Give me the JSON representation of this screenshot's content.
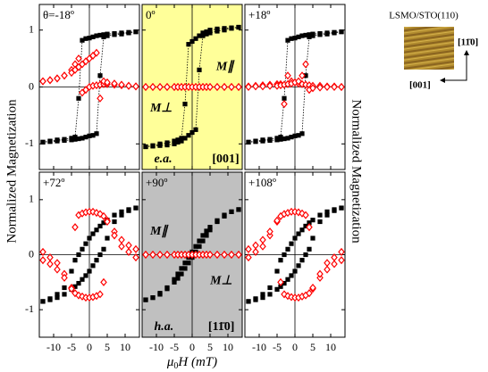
{
  "figure": {
    "ylabel": "Normalized Magnetization",
    "y2label": "Normalized Magnetization",
    "xlabel_symbol": "μ",
    "xlabel_sub": "0",
    "xlabel_rest": "H (mT)"
  },
  "inset": {
    "title": "LSMO/STO(110)",
    "axis_vertical": "[11̄0]",
    "axis_horizontal": "[001]"
  },
  "chart_data": [
    {
      "type": "scatter",
      "title": "θ=-18º",
      "background": "#ffffff",
      "zero_lines": true,
      "xlim": [
        -14,
        14
      ],
      "ylim": [
        -1.45,
        1.45
      ],
      "xticks": [
        -10,
        -5,
        0,
        5,
        10
      ],
      "yticks": [
        -1,
        0,
        1
      ],
      "x": [
        -13,
        -11,
        -9,
        -7,
        -5,
        -4,
        -3,
        -2,
        -1,
        0,
        1,
        2,
        3,
        4,
        5,
        7,
        9,
        11,
        13
      ],
      "series": [
        {
          "color": "#000000",
          "marker": "square",
          "line_style": "dotted",
          "values": [
            -0.97,
            -0.95,
            -0.93,
            -0.92,
            -0.9,
            -0.88,
            -0.2,
            0.82,
            0.85,
            0.86,
            0.88,
            0.9,
            0.91,
            0.92,
            0.93,
            0.94,
            0.95,
            0.96,
            0.97
          ]
        },
        {
          "color": "#000000",
          "marker": "square",
          "line_style": "dotted",
          "values": [
            -0.97,
            -0.96,
            -0.95,
            -0.94,
            -0.93,
            -0.92,
            -0.91,
            -0.9,
            -0.88,
            -0.86,
            -0.85,
            -0.82,
            0.2,
            0.88,
            0.9,
            0.92,
            0.93,
            0.95,
            0.97
          ]
        },
        {
          "color": "#ff0000",
          "marker": "open-diamond",
          "values": [
            0.1,
            0.12,
            0.15,
            0.2,
            0.3,
            0.4,
            0.5,
            -0.1,
            -0.05,
            0,
            0.02,
            0.03,
            0.04,
            0.05,
            0.05,
            0.04,
            0.03,
            0.02,
            0.01
          ]
        },
        {
          "color": "#ff0000",
          "marker": "open-diamond",
          "values": [
            0.1,
            0.12,
            0.15,
            0.2,
            0.25,
            0.3,
            0.35,
            0.4,
            0.45,
            0.5,
            0.55,
            0.6,
            -0.2,
            0.1,
            0.08,
            0.06,
            0.04,
            0.02,
            0.01
          ]
        }
      ]
    },
    {
      "type": "scatter",
      "title": "0º",
      "background": "#ffff99",
      "zero_lines": true,
      "xlim": [
        -14,
        14
      ],
      "ylim": [
        -1.45,
        1.45
      ],
      "xticks": [
        -10,
        -5,
        0,
        5,
        10
      ],
      "yticks": [
        -1,
        0,
        1
      ],
      "x": [
        -13,
        -11,
        -9,
        -7,
        -5,
        -4,
        -3,
        -2,
        -1,
        0,
        1,
        2,
        3,
        4,
        5,
        7,
        9,
        11,
        13
      ],
      "annotations": [
        {
          "text": "M∥",
          "color": "#000000"
        },
        {
          "text": "M⊥",
          "color": "#ff0000"
        },
        {
          "text": "e.a.",
          "color": "#000000"
        },
        {
          "text": "[001]",
          "color": "#000000"
        }
      ],
      "series": [
        {
          "color": "#000000",
          "marker": "square",
          "line_style": "dotted",
          "values": [
            -1.05,
            -1.03,
            -1.0,
            -0.98,
            -0.95,
            -0.93,
            -0.9,
            -0.3,
            0.75,
            0.8,
            0.85,
            0.9,
            0.95,
            0.97,
            1.0,
            1.02,
            1.03,
            1.04,
            1.05
          ]
        },
        {
          "color": "#000000",
          "marker": "square",
          "line_style": "dotted",
          "values": [
            -1.05,
            -1.04,
            -1.03,
            -1.02,
            -1.0,
            -0.97,
            -0.95,
            -0.9,
            -0.85,
            -0.8,
            -0.75,
            0.3,
            0.9,
            0.93,
            0.95,
            0.98,
            1.0,
            1.03,
            1.05
          ]
        },
        {
          "color": "#ff0000",
          "marker": "open-diamond",
          "values": [
            0,
            0,
            0,
            0,
            0,
            0,
            0,
            0,
            0,
            0,
            0,
            0,
            0,
            0,
            0,
            0,
            0,
            0,
            0
          ]
        },
        {
          "color": "#ff0000",
          "marker": "open-diamond",
          "values": [
            0,
            0,
            0,
            0,
            0,
            0,
            0,
            0,
            0,
            0,
            0,
            0,
            0,
            0,
            0,
            0,
            0,
            0,
            0
          ]
        }
      ]
    },
    {
      "type": "scatter",
      "title": "+18º",
      "background": "#ffffff",
      "zero_lines": true,
      "xlim": [
        -14,
        14
      ],
      "ylim": [
        -1.45,
        1.45
      ],
      "xticks": [
        -10,
        -5,
        0,
        5,
        10
      ],
      "yticks": [
        -1,
        0,
        1
      ],
      "x": [
        -13,
        -11,
        -9,
        -7,
        -5,
        -4,
        -3,
        -2,
        -1,
        0,
        1,
        2,
        3,
        4,
        5,
        7,
        9,
        11,
        13
      ],
      "series": [
        {
          "color": "#000000",
          "marker": "square",
          "line_style": "dotted",
          "values": [
            -0.97,
            -0.95,
            -0.93,
            -0.92,
            -0.9,
            -0.88,
            -0.2,
            0.82,
            0.85,
            0.86,
            0.88,
            0.9,
            0.91,
            0.92,
            0.93,
            0.94,
            0.95,
            0.96,
            0.97
          ]
        },
        {
          "color": "#000000",
          "marker": "square",
          "line_style": "dotted",
          "values": [
            -0.97,
            -0.96,
            -0.95,
            -0.94,
            -0.93,
            -0.92,
            -0.91,
            -0.9,
            -0.88,
            -0.86,
            -0.85,
            -0.82,
            0.2,
            0.88,
            0.9,
            0.92,
            0.93,
            0.95,
            0.97
          ]
        },
        {
          "color": "#ff0000",
          "marker": "open-diamond",
          "values": [
            0.01,
            0.02,
            0.03,
            0.04,
            0.05,
            0.05,
            -0.3,
            0.2,
            0.1,
            0.08,
            0.06,
            0.05,
            0.04,
            0.03,
            0.02,
            0.02,
            0.01,
            0.01,
            0
          ]
        },
        {
          "color": "#ff0000",
          "marker": "open-diamond",
          "values": [
            0,
            0.01,
            0.01,
            0.02,
            0.02,
            0.03,
            0.04,
            0.05,
            0.06,
            0.08,
            0.1,
            0.2,
            0.4,
            -0.05,
            -0.02,
            -0.01,
            0,
            0,
            0
          ]
        }
      ]
    },
    {
      "type": "scatter",
      "title": "+72º",
      "background": "#ffffff",
      "zero_lines": true,
      "xlim": [
        -14,
        14
      ],
      "ylim": [
        -1.5,
        1.5
      ],
      "xticks": [
        -10,
        -5,
        0,
        5,
        10
      ],
      "yticks": [
        -1,
        0,
        1
      ],
      "x": [
        -13,
        -11,
        -9,
        -7,
        -5,
        -4,
        -3,
        -2,
        -1,
        0,
        1,
        2,
        3,
        4,
        5,
        7,
        9,
        11,
        13
      ],
      "series": [
        {
          "color": "#000000",
          "marker": "square",
          "values": [
            -0.85,
            -0.8,
            -0.72,
            -0.6,
            -0.3,
            -0.1,
            0,
            0.1,
            0.2,
            0.3,
            0.38,
            0.45,
            0.52,
            0.58,
            0.63,
            0.72,
            0.78,
            0.82,
            0.85
          ]
        },
        {
          "color": "#000000",
          "marker": "square",
          "values": [
            -0.85,
            -0.82,
            -0.78,
            -0.72,
            -0.63,
            -0.58,
            -0.52,
            -0.45,
            -0.38,
            -0.3,
            -0.2,
            -0.1,
            0,
            0.1,
            0.3,
            0.6,
            0.72,
            0.8,
            0.85
          ]
        },
        {
          "color": "#ff0000",
          "marker": "open-diamond",
          "values": [
            0.05,
            -0.05,
            -0.15,
            -0.35,
            -0.6,
            0.5,
            0.72,
            0.75,
            0.77,
            0.78,
            0.78,
            0.76,
            0.74,
            0.7,
            0.62,
            0.42,
            0.27,
            0.17,
            0.1
          ]
        },
        {
          "color": "#ff0000",
          "marker": "open-diamond",
          "values": [
            -0.1,
            -0.17,
            -0.27,
            -0.42,
            -0.62,
            -0.7,
            -0.74,
            -0.76,
            -0.78,
            -0.78,
            -0.77,
            -0.75,
            -0.72,
            -0.5,
            0.6,
            0.35,
            0.15,
            0.05,
            -0.05
          ]
        }
      ]
    },
    {
      "type": "scatter",
      "title": "+90º",
      "background": "#c0c0c0",
      "zero_lines": true,
      "xlim": [
        -14,
        14
      ],
      "ylim": [
        -1.5,
        1.5
      ],
      "xticks": [
        -10,
        -5,
        0,
        5,
        10
      ],
      "yticks": [
        -1,
        0,
        1
      ],
      "x": [
        -13,
        -11,
        -9,
        -7,
        -5,
        -4,
        -3,
        -2,
        -1,
        0,
        1,
        2,
        3,
        4,
        5,
        7,
        9,
        11,
        13
      ],
      "annotations": [
        {
          "text": "M∥",
          "color": "#000000"
        },
        {
          "text": "M⊥",
          "color": "#ff0000"
        },
        {
          "text": "h.a.",
          "color": "#000000"
        },
        {
          "text": "[11̄0]",
          "color": "#000000"
        }
      ],
      "series": [
        {
          "color": "#000000",
          "marker": "square",
          "values": [
            -0.82,
            -0.78,
            -0.7,
            -0.6,
            -0.45,
            -0.35,
            -0.25,
            -0.15,
            -0.05,
            0.05,
            0.15,
            0.25,
            0.35,
            0.43,
            0.5,
            0.62,
            0.72,
            0.78,
            0.82
          ]
        },
        {
          "color": "#000000",
          "marker": "square",
          "values": [
            -0.82,
            -0.78,
            -0.72,
            -0.62,
            -0.5,
            -0.43,
            -0.35,
            -0.25,
            -0.15,
            -0.05,
            0.05,
            0.15,
            0.25,
            0.35,
            0.45,
            0.6,
            0.7,
            0.78,
            0.82
          ]
        },
        {
          "color": "#ff0000",
          "marker": "open-diamond",
          "values": [
            0,
            0,
            0,
            0,
            0,
            0,
            0,
            0,
            0,
            0,
            0,
            0,
            0,
            0,
            0,
            0,
            0,
            0,
            0
          ]
        },
        {
          "color": "#ff0000",
          "marker": "open-diamond",
          "values": [
            0,
            0,
            0,
            0,
            0,
            0,
            0,
            0,
            0,
            0,
            0,
            0,
            0,
            0,
            0,
            0,
            0,
            0,
            0
          ]
        }
      ]
    },
    {
      "type": "scatter",
      "title": "+108º",
      "background": "#ffffff",
      "zero_lines": true,
      "xlim": [
        -14,
        14
      ],
      "ylim": [
        -1.5,
        1.5
      ],
      "xticks": [
        -10,
        -5,
        0,
        5,
        10
      ],
      "yticks": [
        -1,
        0,
        1
      ],
      "x": [
        -13,
        -11,
        -9,
        -7,
        -5,
        -4,
        -3,
        -2,
        -1,
        0,
        1,
        2,
        3,
        4,
        5,
        7,
        9,
        11,
        13
      ],
      "series": [
        {
          "color": "#000000",
          "marker": "square",
          "values": [
            -0.85,
            -0.8,
            -0.72,
            -0.6,
            -0.3,
            -0.1,
            0,
            0.1,
            0.2,
            0.3,
            0.38,
            0.45,
            0.52,
            0.58,
            0.63,
            0.72,
            0.78,
            0.82,
            0.85
          ]
        },
        {
          "color": "#000000",
          "marker": "square",
          "values": [
            -0.85,
            -0.82,
            -0.78,
            -0.72,
            -0.63,
            -0.58,
            -0.52,
            -0.45,
            -0.38,
            -0.3,
            -0.2,
            -0.1,
            0,
            0.1,
            0.3,
            0.6,
            0.72,
            0.8,
            0.85
          ]
        },
        {
          "color": "#ff0000",
          "marker": "open-diamond",
          "values": [
            -0.05,
            0.05,
            0.15,
            0.35,
            0.6,
            -0.5,
            -0.72,
            -0.75,
            -0.77,
            -0.78,
            -0.78,
            -0.76,
            -0.74,
            -0.7,
            -0.62,
            -0.42,
            -0.27,
            -0.17,
            -0.1
          ]
        },
        {
          "color": "#ff0000",
          "marker": "open-diamond",
          "values": [
            0.1,
            0.17,
            0.27,
            0.42,
            0.62,
            0.7,
            0.74,
            0.76,
            0.78,
            0.78,
            0.77,
            0.75,
            0.72,
            0.5,
            -0.6,
            -0.35,
            -0.15,
            -0.05,
            0.05
          ]
        }
      ]
    }
  ]
}
